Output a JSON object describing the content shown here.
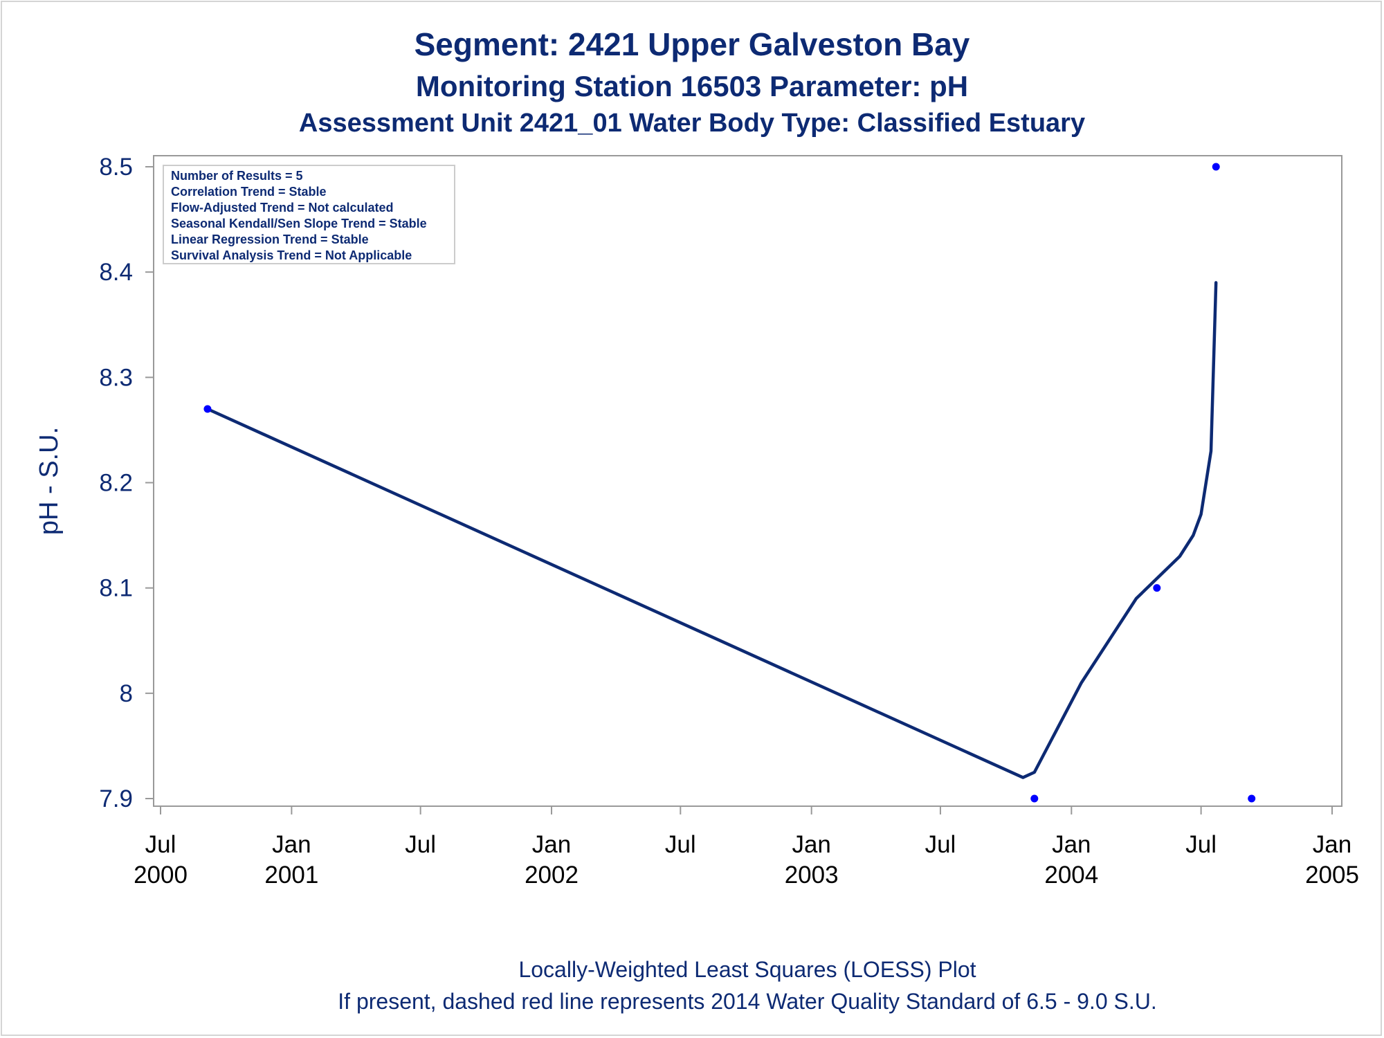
{
  "titles": {
    "line1": "Segment: 2421  Upper Galveston Bay",
    "line2": "Monitoring Station 16503 Parameter: pH",
    "line3": "Assessment Unit 2421_01   Water Body Type: Classified Estuary"
  },
  "stats_box": [
    "Number of Results = 5",
    "Correlation Trend = Stable",
    "Flow-Adjusted Trend = Not calculated",
    "Seasonal Kendall/Sen Slope Trend = Stable",
    "Linear Regression Trend = Stable",
    "Survival Analysis Trend = Not Applicable"
  ],
  "footnotes": {
    "line1": "Locally-Weighted Least Squares (LOESS) Plot",
    "line2": "If present, dashed red line represents 2014 Water Quality Standard of 6.5 - 9.0 S.U."
  },
  "colors": {
    "text": "#0d2a73",
    "loess_line": "#0d2a73",
    "points": "#0000ff",
    "axis": "#999999"
  },
  "chart_data": {
    "type": "scatter",
    "ylabel": "pH - S.U.",
    "xlabel": "",
    "ylim": [
      7.9,
      8.5
    ],
    "yticks": [
      {
        "value": 7.9,
        "label": "7.9"
      },
      {
        "value": 8.0,
        "label": "8"
      },
      {
        "value": 8.1,
        "label": "8.1"
      },
      {
        "value": 8.2,
        "label": "8.2"
      },
      {
        "value": 8.3,
        "label": "8.3"
      },
      {
        "value": 8.4,
        "label": "8.4"
      },
      {
        "value": 8.5,
        "label": "8.5"
      }
    ],
    "xlim": [
      "2000-07-01",
      "2005-01-01"
    ],
    "xticks": [
      {
        "date": "2000-07-01",
        "label": [
          "Jul",
          "2000"
        ]
      },
      {
        "date": "2001-01-01",
        "label": [
          "Jan",
          "2001"
        ]
      },
      {
        "date": "2001-07-01",
        "label": [
          "Jul",
          ""
        ]
      },
      {
        "date": "2002-01-01",
        "label": [
          "Jan",
          "2002"
        ]
      },
      {
        "date": "2002-07-01",
        "label": [
          "Jul",
          ""
        ]
      },
      {
        "date": "2003-01-01",
        "label": [
          "Jan",
          "2003"
        ]
      },
      {
        "date": "2003-07-01",
        "label": [
          "Jul",
          ""
        ]
      },
      {
        "date": "2004-01-01",
        "label": [
          "Jan",
          "2004"
        ]
      },
      {
        "date": "2004-07-01",
        "label": [
          "Jul",
          ""
        ]
      },
      {
        "date": "2005-01-01",
        "label": [
          "Jan",
          "2005"
        ]
      }
    ],
    "points": [
      {
        "x": "2000-09-05",
        "y": 8.27
      },
      {
        "x": "2003-11-10",
        "y": 7.9
      },
      {
        "x": "2004-04-30",
        "y": 8.1
      },
      {
        "x": "2004-09-10",
        "y": 7.9
      },
      {
        "x": "2004-07-22",
        "y": 8.5
      }
    ],
    "loess": [
      {
        "x": "2000-09-05",
        "y": 8.27
      },
      {
        "x": "2003-10-25",
        "y": 7.92
      },
      {
        "x": "2003-11-10",
        "y": 7.925
      },
      {
        "x": "2004-01-15",
        "y": 8.01
      },
      {
        "x": "2004-04-01",
        "y": 8.09
      },
      {
        "x": "2004-06-01",
        "y": 8.13
      },
      {
        "x": "2004-06-20",
        "y": 8.15
      },
      {
        "x": "2004-07-01",
        "y": 8.17
      },
      {
        "x": "2004-07-15",
        "y": 8.23
      },
      {
        "x": "2004-07-22",
        "y": 8.39
      }
    ],
    "grid": false,
    "legend": "none"
  }
}
